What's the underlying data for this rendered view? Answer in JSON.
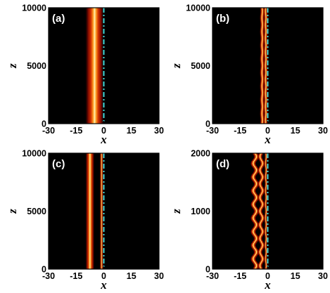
{
  "chart_data": [
    {
      "type": "heatmap",
      "panel_label": "(a)",
      "xlabel": "x",
      "ylabel": "z",
      "xlim": [
        -30,
        30
      ],
      "ylim": [
        0,
        10000
      ],
      "x_ticks": [
        "-30",
        "-15",
        "0",
        "15",
        "30"
      ],
      "y_ticks": [
        "0",
        "5000",
        "10000"
      ],
      "y_tick_values": [
        0,
        5000,
        10000
      ],
      "background": "#000000",
      "interface_x": 0,
      "interface_color": "#3fd9d9",
      "beams": [
        {
          "center": -5,
          "width": 2.3,
          "intensity": 1.0,
          "oscillation": 0
        }
      ]
    },
    {
      "type": "heatmap",
      "panel_label": "(b)",
      "xlabel": "x",
      "ylabel": "z",
      "xlim": [
        -30,
        30
      ],
      "ylim": [
        0,
        10000
      ],
      "x_ticks": [
        "-30",
        "-15",
        "0",
        "15",
        "30"
      ],
      "y_ticks": [
        "0",
        "5000",
        "10000"
      ],
      "y_tick_values": [
        0,
        5000,
        10000
      ],
      "background": "#000000",
      "interface_x": 0,
      "interface_color": "#3fd9d9",
      "beams": [
        {
          "center": -3.0,
          "width": 0.55,
          "intensity": 1.0,
          "oscillation": 0.15
        },
        {
          "center": -1.1,
          "width": 0.55,
          "intensity": 0.95,
          "oscillation": 0.15
        }
      ]
    },
    {
      "type": "heatmap",
      "panel_label": "(c)",
      "xlabel": "x",
      "ylabel": "z",
      "xlim": [
        -30,
        30
      ],
      "ylim": [
        0,
        10000
      ],
      "x_ticks": [
        "-30",
        "-15",
        "0",
        "15",
        "30"
      ],
      "y_ticks": [
        "0",
        "5000",
        "10000"
      ],
      "y_tick_values": [
        0,
        5000,
        10000
      ],
      "background": "#000000",
      "interface_x": 0,
      "interface_color": "#3fd9d9",
      "beams": [
        {
          "center": -7.5,
          "width": 1.1,
          "intensity": 1.0,
          "oscillation": 0
        },
        {
          "center": -1.2,
          "width": 0.45,
          "intensity": 0.9,
          "oscillation": 0
        }
      ]
    },
    {
      "type": "heatmap",
      "panel_label": "(d)",
      "xlabel": "x",
      "ylabel": "z",
      "xlim": [
        -30,
        30
      ],
      "ylim": [
        0,
        2000
      ],
      "x_ticks": [
        "-30",
        "-15",
        "0",
        "15",
        "30"
      ],
      "y_ticks": [
        "0",
        "1000",
        "2000"
      ],
      "y_tick_values": [
        0,
        1000,
        2000
      ],
      "background": "#000000",
      "interface_x": 0,
      "interface_color": "#3fd9d9",
      "beams": [
        {
          "center": -7.0,
          "width": 0.7,
          "intensity": 1.0,
          "oscillation": 1.0
        },
        {
          "center": -3.5,
          "width": 0.6,
          "intensity": 1.0,
          "oscillation": 0.8
        },
        {
          "center": -1.0,
          "width": 0.4,
          "intensity": 0.9,
          "oscillation": 0.2
        }
      ]
    }
  ]
}
